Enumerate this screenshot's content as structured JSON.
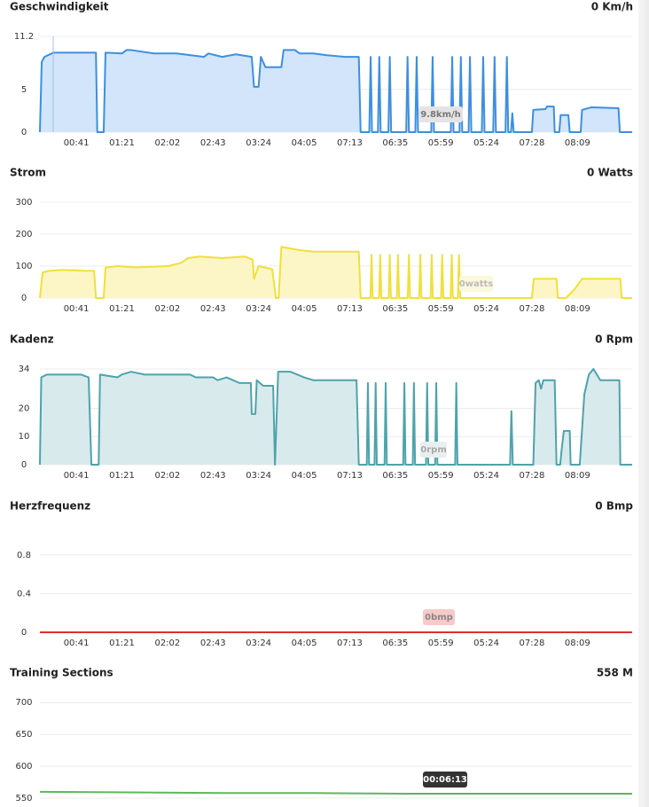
{
  "chart_data": [
    {
      "type": "line",
      "title": "Geschwindigkeit",
      "current_value": "0 Km/h",
      "annotation": "9.8km/h",
      "color": "#3d8fe0",
      "fill": "#d3e5fa",
      "grid": true,
      "xlim": [
        0,
        130
      ],
      "ylim": [
        0,
        11.2
      ],
      "yticks": [
        0,
        5,
        11.2
      ],
      "xticks": [
        {
          "value": 8,
          "label": "00:41"
        },
        {
          "value": 18,
          "label": "01:21"
        },
        {
          "value": 28,
          "label": "02:02"
        },
        {
          "value": 38,
          "label": "02:43"
        },
        {
          "value": 48,
          "label": "03:24"
        },
        {
          "value": 58,
          "label": "04:05"
        },
        {
          "value": 68,
          "label": "07:13"
        },
        {
          "value": 78,
          "label": "06:35"
        },
        {
          "value": 88,
          "label": "05:59"
        },
        {
          "value": 98,
          "label": "05:24"
        },
        {
          "value": 108,
          "label": "07:28"
        },
        {
          "value": 118,
          "label": "08:09"
        }
      ],
      "x": [
        0,
        0.4,
        1,
        3,
        12.3,
        12.6,
        14,
        14.4,
        18,
        19,
        20,
        25,
        30,
        36,
        37,
        40,
        43,
        46.5,
        47,
        48,
        48.5,
        49.5,
        53,
        53.5,
        56,
        57,
        60,
        63,
        67,
        70,
        70.4,
        72.3,
        72.6,
        72.9,
        74.2,
        74.5,
        74.8,
        76.5,
        76.8,
        77.1,
        80.4,
        80.7,
        81,
        82.4,
        82.7,
        83,
        85.9,
        86.2,
        86.5,
        90.2,
        90.5,
        90.8,
        92.1,
        92.4,
        92.7,
        94.1,
        94.4,
        94.7,
        97,
        97.3,
        97.6,
        99.5,
        99.8,
        100.1,
        102.2,
        102.5,
        102.8,
        103.4,
        103.7,
        104,
        108,
        108.3,
        111,
        111.3,
        112.8,
        113,
        114,
        114.3,
        116,
        116.3,
        118.7,
        119,
        121,
        127,
        127.3,
        130
      ],
      "values": [
        0,
        8.2,
        8.8,
        9.3,
        9.3,
        0,
        0,
        9.3,
        9.2,
        9.6,
        9.6,
        9.2,
        9.2,
        8.8,
        9.2,
        8.8,
        9.1,
        8.8,
        5.3,
        5.3,
        8.8,
        7.6,
        7.6,
        9.6,
        9.6,
        9.2,
        9.2,
        9.0,
        8.8,
        8.8,
        0,
        0,
        8.8,
        0,
        0,
        8.8,
        0,
        0,
        8.8,
        0,
        0,
        8.8,
        0,
        0,
        8.8,
        0,
        0,
        8.8,
        0,
        0,
        8.8,
        0,
        0,
        8.8,
        0,
        0,
        8.8,
        0,
        0,
        8.8,
        0,
        0,
        8.8,
        0,
        0,
        8.8,
        0,
        0,
        2.2,
        0,
        0,
        2.6,
        2.7,
        3.0,
        3.0,
        0,
        0,
        2.0,
        2.0,
        0,
        0,
        2.6,
        2.9,
        2.8,
        0,
        0
      ]
    },
    {
      "type": "line",
      "title": "Strom",
      "current_value": "0 Watts",
      "annotation": "0watts",
      "color": "#f0e03a",
      "fill": "#fcf6c6",
      "grid": true,
      "xlim": [
        0,
        130
      ],
      "ylim": [
        0,
        300
      ],
      "yticks": [
        0,
        100,
        200,
        300
      ],
      "xticks": [
        {
          "value": 8,
          "label": "00:41"
        },
        {
          "value": 18,
          "label": "01:21"
        },
        {
          "value": 28,
          "label": "02:02"
        },
        {
          "value": 38,
          "label": "02:43"
        },
        {
          "value": 48,
          "label": "03:24"
        },
        {
          "value": 58,
          "label": "04:05"
        },
        {
          "value": 68,
          "label": "07:13"
        },
        {
          "value": 78,
          "label": "06:35"
        },
        {
          "value": 88,
          "label": "05:59"
        },
        {
          "value": 98,
          "label": "05:24"
        },
        {
          "value": 108,
          "label": "07:28"
        },
        {
          "value": 118,
          "label": "08:09"
        }
      ],
      "x": [
        0,
        0.6,
        2,
        5,
        10,
        11.9,
        12.3,
        14,
        14.4,
        17,
        21,
        28.2,
        31,
        32.5,
        35,
        40,
        45,
        46.7,
        47,
        48,
        51,
        51.8,
        52.4,
        53,
        57,
        60,
        70,
        70.4,
        72.55,
        72.8,
        73.05,
        74.45,
        74.7,
        74.95,
        76.55,
        76.8,
        77.05,
        78.35,
        78.6,
        78.85,
        80.75,
        81,
        81.25,
        83.25,
        83.5,
        83.75,
        85.75,
        86,
        86.25,
        88.05,
        88.3,
        88.55,
        90.15,
        90.4,
        90.65,
        91.75,
        92,
        92.25,
        108,
        108.4,
        113.4,
        113.7,
        115.5,
        117.5,
        119,
        127.4,
        127.7,
        130
      ],
      "values": [
        0,
        80,
        85,
        88,
        85,
        85,
        0,
        0,
        95,
        100,
        96,
        100,
        110,
        125,
        130,
        125,
        130,
        120,
        60,
        100,
        90,
        0,
        0,
        160,
        150,
        145,
        145,
        0,
        0,
        135,
        0,
        0,
        135,
        0,
        0,
        135,
        0,
        0,
        135,
        0,
        0,
        135,
        0,
        0,
        135,
        0,
        0,
        135,
        0,
        0,
        135,
        0,
        0,
        135,
        0,
        0,
        135,
        0,
        0,
        60,
        60,
        0,
        0,
        30,
        60,
        60,
        0,
        0
      ]
    },
    {
      "type": "line",
      "title": "Kadenz",
      "current_value": "0 Rpm",
      "annotation": "0rpm",
      "color": "#4ea3ac",
      "fill": "#d9eaec",
      "grid": true,
      "xlim": [
        0,
        130
      ],
      "ylim": [
        0,
        34
      ],
      "yticks": [
        0,
        10,
        20,
        34
      ],
      "xticks": [
        {
          "value": 8,
          "label": "00:41"
        },
        {
          "value": 18,
          "label": "01:21"
        },
        {
          "value": 28,
          "label": "02:02"
        },
        {
          "value": 38,
          "label": "02:43"
        },
        {
          "value": 48,
          "label": "03:24"
        },
        {
          "value": 58,
          "label": "04:05"
        },
        {
          "value": 68,
          "label": "07:13"
        },
        {
          "value": 78,
          "label": "06:35"
        },
        {
          "value": 88,
          "label": "05:59"
        },
        {
          "value": 98,
          "label": "05:24"
        },
        {
          "value": 108,
          "label": "07:28"
        },
        {
          "value": 118,
          "label": "08:09"
        }
      ],
      "x": [
        0,
        0.3,
        1.5,
        9,
        10.7,
        11.3,
        12.9,
        13.2,
        17,
        18,
        20,
        23,
        33,
        34.2,
        38,
        39,
        41,
        43.8,
        46.3,
        46.5,
        47.3,
        47.6,
        49,
        51.2,
        51.6,
        52.3,
        55,
        58,
        60,
        69.5,
        70,
        71.75,
        72,
        72.25,
        73.45,
        73.7,
        73.95,
        75.65,
        75.9,
        76.15,
        79.75,
        80,
        80.25,
        81.85,
        82.1,
        82.35,
        84.75,
        85,
        85.25,
        86.75,
        87,
        87.25,
        91.15,
        91.4,
        91.65,
        103.2,
        103.5,
        103.8,
        108.3,
        108.8,
        109.5,
        110,
        110.5,
        113,
        113.4,
        114.2,
        114.5,
        115,
        116.3,
        116.5,
        118.5,
        119.5,
        120.5,
        121.5,
        123,
        127.2,
        127.4,
        130
      ],
      "values": [
        0,
        31,
        32,
        32,
        31,
        0,
        0,
        32,
        31,
        32,
        33,
        32,
        32,
        31,
        31,
        30,
        31,
        29,
        29,
        18,
        18,
        30,
        28,
        28,
        0,
        33,
        33,
        31,
        30,
        30,
        0,
        0,
        29,
        0,
        0,
        29,
        0,
        0,
        29,
        0,
        0,
        29,
        0,
        0,
        29,
        0,
        0,
        29,
        0,
        0,
        29,
        0,
        0,
        29,
        0,
        0,
        19,
        0,
        0,
        29,
        30,
        27,
        30,
        30,
        0,
        0,
        5,
        12,
        12,
        0,
        0,
        25,
        32,
        34,
        30,
        30,
        0,
        0
      ]
    },
    {
      "type": "line",
      "title": "Herzfrequenz",
      "current_value": "0 Bmp",
      "annotation": "0bmp",
      "color": "#e0302c",
      "grid": true,
      "xlim": [
        0,
        130
      ],
      "ylim": [
        0,
        1
      ],
      "yticks": [
        0,
        0.4,
        0.8
      ],
      "xticks": [
        {
          "value": 8,
          "label": "00:41"
        },
        {
          "value": 18,
          "label": "01:21"
        },
        {
          "value": 28,
          "label": "02:02"
        },
        {
          "value": 38,
          "label": "02:43"
        },
        {
          "value": 48,
          "label": "03:24"
        },
        {
          "value": 58,
          "label": "04:05"
        },
        {
          "value": 68,
          "label": "07:13"
        },
        {
          "value": 78,
          "label": "06:35"
        },
        {
          "value": 88,
          "label": "05:59"
        },
        {
          "value": 98,
          "label": "05:24"
        },
        {
          "value": 108,
          "label": "07:28"
        },
        {
          "value": 118,
          "label": "08:09"
        }
      ],
      "x": [
        0,
        130
      ],
      "values": [
        0,
        0
      ]
    },
    {
      "type": "line",
      "title": "Training Sections",
      "current_value": "558 M",
      "annotation": "00:06:13",
      "color": "#5cb85c",
      "grid": true,
      "xlim": [
        0,
        130
      ],
      "ylim": [
        550,
        710
      ],
      "yticks": [
        550,
        600,
        650,
        700
      ],
      "x": [
        0,
        20,
        40,
        60,
        80,
        100,
        120,
        130
      ],
      "values": [
        560,
        559,
        558,
        558,
        557,
        557,
        557,
        557
      ]
    }
  ]
}
